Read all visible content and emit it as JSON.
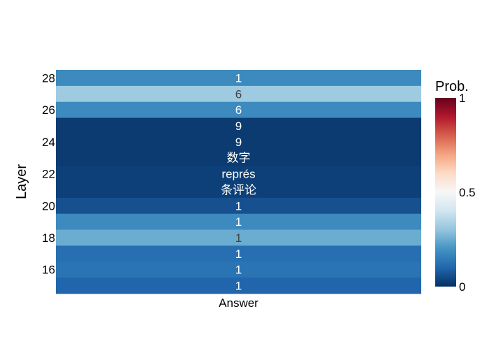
{
  "chart_data": {
    "type": "heatmap",
    "title": "",
    "xlabel": "",
    "ylabel": "Layer",
    "x_categories": [
      "Answer"
    ],
    "y_range": [
      15,
      28
    ],
    "y_ticks": [
      16,
      18,
      20,
      22,
      24,
      26,
      28
    ],
    "rows": [
      {
        "layer": 28,
        "text": "1",
        "prob": 0.18
      },
      {
        "layer": 27,
        "text": "6",
        "prob": 0.32
      },
      {
        "layer": 26,
        "text": "6",
        "prob": 0.18
      },
      {
        "layer": 25,
        "text": "9",
        "prob": 0.02
      },
      {
        "layer": 24,
        "text": "9",
        "prob": 0.02
      },
      {
        "layer": 23,
        "text": "数字",
        "prob": 0.02
      },
      {
        "layer": 22,
        "text": "représ",
        "prob": 0.03
      },
      {
        "layer": 21,
        "text": "条评论",
        "prob": 0.03
      },
      {
        "layer": 20,
        "text": "1",
        "prob": 0.06
      },
      {
        "layer": 19,
        "text": "1",
        "prob": 0.18
      },
      {
        "layer": 18,
        "text": "1",
        "prob": 0.25
      },
      {
        "layer": 17,
        "text": "1",
        "prob": 0.12
      },
      {
        "layer": 16,
        "text": "1",
        "prob": 0.13
      },
      {
        "layer": 15,
        "text": "1",
        "prob": 0.1
      }
    ],
    "colorbar": {
      "title": "Prob.",
      "range": [
        0,
        1
      ],
      "ticks": [
        0,
        0.5,
        1
      ],
      "tick_labels": [
        "0",
        "0.5",
        "1"
      ],
      "colorscale": [
        [
          0.0,
          "#053061"
        ],
        [
          0.1,
          "#2166ac"
        ],
        [
          0.2,
          "#4393c3"
        ],
        [
          0.3,
          "#92c5de"
        ],
        [
          0.4,
          "#d1e5f0"
        ],
        [
          0.5,
          "#f7f7f7"
        ],
        [
          0.6,
          "#fddbc7"
        ],
        [
          0.7,
          "#f4a582"
        ],
        [
          0.8,
          "#d6604d"
        ],
        [
          0.9,
          "#b2182b"
        ],
        [
          1.0,
          "#67001f"
        ]
      ]
    }
  }
}
